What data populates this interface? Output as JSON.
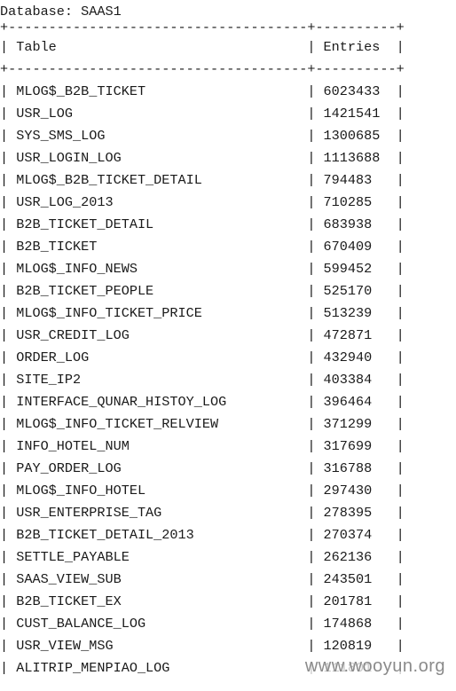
{
  "database_label": "Database: SAAS1",
  "table": {
    "border": "+-------------------------------------+----------+",
    "header_line": "| Table                               | Entries  |",
    "rows": [
      "| MLOG$_B2B_TICKET                    | 6023433  |",
      "| USR_LOG                             | 1421541  |",
      "| SYS_SMS_LOG                         | 1300685  |",
      "| USR_LOGIN_LOG                       | 1113688  |",
      "| MLOG$_B2B_TICKET_DETAIL             | 794483   |",
      "| USR_LOG_2013                        | 710285   |",
      "| B2B_TICKET_DETAIL                   | 683938   |",
      "| B2B_TICKET                          | 670409   |",
      "| MLOG$_INFO_NEWS                     | 599452   |",
      "| B2B_TICKET_PEOPLE                   | 525170   |",
      "| MLOG$_INFO_TICKET_PRICE             | 513239   |",
      "| USR_CREDIT_LOG                      | 472871   |",
      "| ORDER_LOG                           | 432940   |",
      "| SITE_IP2                            | 403384   |",
      "| INTERFACE_QUNAR_HISTOY_LOG          | 396464   |",
      "| MLOG$_INFO_TICKET_RELVIEW           | 371299   |",
      "| INFO_HOTEL_NUM                      | 317699   |",
      "| PAY_ORDER_LOG                       | 316788   |",
      "| MLOG$_INFO_HOTEL                    | 297430   |",
      "| USR_ENTERPRISE_TAG                  | 278395   |",
      "| B2B_TICKET_DETAIL_2013              | 270374   |",
      "| SETTLE_PAYABLE                      | 262136   |",
      "| SAAS_VIEW_SUB                       | 243501   |",
      "| B2B_TICKET_EX                       | 201781   |",
      "| CUST_BALANCE_LOG                    | 174868   |",
      "| USR_VIEW_MSG                        | 120819   |",
      "| ALITRIP_MENPIAO_LOG                 | 111801   |"
    ]
  },
  "watermark": "www.wooyun.org"
}
